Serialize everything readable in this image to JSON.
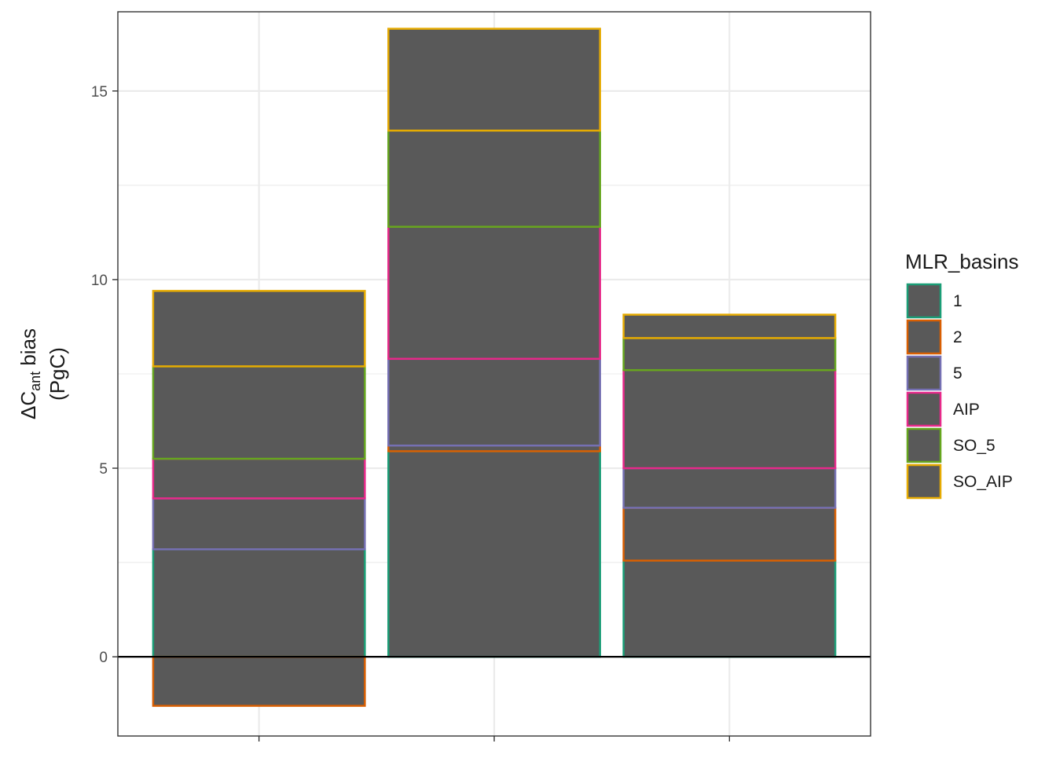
{
  "chart_data": {
    "type": "bar",
    "stacked": true,
    "categories": [
      "",
      "",
      ""
    ],
    "ylabel": {
      "prefix": "ΔC",
      "subscript": "ant",
      "suffix": " bias",
      "line2": "(PgC)"
    },
    "xlabel": "",
    "ylim": [
      -2.1,
      17.1
    ],
    "yticks": [
      0,
      5,
      10,
      15
    ],
    "grid": true,
    "zero_line": true,
    "bar_fill": "#595959",
    "legend": {
      "title": "MLR_basins",
      "placement": "right"
    },
    "series": [
      {
        "name": "1",
        "color": "#1B9E77",
        "values": [
          2.85,
          5.45,
          2.55
        ]
      },
      {
        "name": "2",
        "color": "#D95F02",
        "values": [
          -1.3,
          0.15,
          1.4
        ]
      },
      {
        "name": "5",
        "color": "#7570B3",
        "values": [
          1.35,
          2.3,
          1.05
        ]
      },
      {
        "name": "AIP",
        "color": "#E7298A",
        "values": [
          1.05,
          3.5,
          2.6
        ]
      },
      {
        "name": "SO_5",
        "color": "#66A61E",
        "values": [
          2.45,
          2.55,
          0.85
        ]
      },
      {
        "name": "SO_AIP",
        "color": "#E6AB02",
        "values": [
          2.0,
          2.7,
          0.62
        ]
      }
    ]
  }
}
